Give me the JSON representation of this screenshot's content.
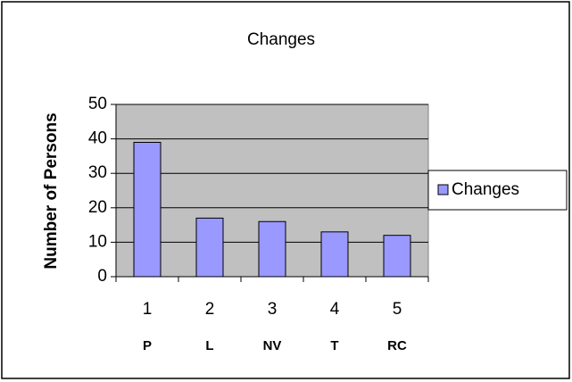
{
  "chart_data": {
    "type": "bar",
    "title": "Changes",
    "y_label": "Number of Persons",
    "categories": [
      "1",
      "2",
      "3",
      "4",
      "5"
    ],
    "sub_labels": [
      "P",
      "L",
      "NV",
      "T",
      "RC"
    ],
    "series": [
      {
        "name": "Changes",
        "color": "#9999ff",
        "values": [
          39,
          17,
          16,
          13,
          12
        ]
      }
    ],
    "ylim": [
      0,
      50
    ],
    "yticks": [
      0,
      10,
      20,
      30,
      40,
      50
    ],
    "grid": true,
    "plot_color": "#c0c0c0",
    "legend": "right"
  }
}
